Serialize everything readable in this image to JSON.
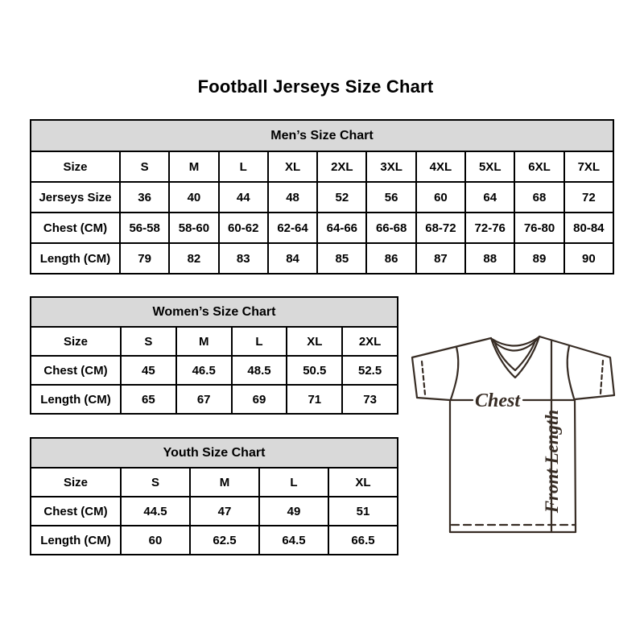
{
  "page": {
    "title": "Football Jerseys Size Chart"
  },
  "tables": [
    {
      "title": "Men’s Size Chart",
      "rows": [
        [
          "Size",
          "S",
          "M",
          "L",
          "XL",
          "2XL",
          "3XL",
          "4XL",
          "5XL",
          "6XL",
          "7XL"
        ],
        [
          "Jerseys Size",
          "36",
          "40",
          "44",
          "48",
          "52",
          "56",
          "60",
          "64",
          "68",
          "72"
        ],
        [
          "Chest (CM)",
          "56-58",
          "58-60",
          "60-62",
          "62-64",
          "64-66",
          "66-68",
          "68-72",
          "72-76",
          "76-80",
          "80-84"
        ],
        [
          "Length (CM)",
          "79",
          "82",
          "83",
          "84",
          "85",
          "86",
          "87",
          "88",
          "89",
          "90"
        ]
      ]
    },
    {
      "title": "Women’s Size Chart",
      "rows": [
        [
          "Size",
          "S",
          "M",
          "L",
          "XL",
          "2XL"
        ],
        [
          "Chest (CM)",
          "45",
          "46.5",
          "48.5",
          "50.5",
          "52.5"
        ],
        [
          "Length (CM)",
          "65",
          "67",
          "69",
          "71",
          "73"
        ]
      ]
    },
    {
      "title": "Youth Size Chart",
      "rows": [
        [
          "Size",
          "S",
          "M",
          "L",
          "XL"
        ],
        [
          "Chest (CM)",
          "44.5",
          "47",
          "49",
          "51"
        ],
        [
          "Length (CM)",
          "60",
          "62.5",
          "64.5",
          "66.5"
        ]
      ]
    }
  ],
  "diagram": {
    "chest_label": "Chest",
    "front_length_label": "Front Length"
  },
  "colors": {
    "background": "#ffffff",
    "text": "#000000",
    "table_border": "#000000",
    "header_fill": "#d9d9d9",
    "jersey_line": "#372c24"
  }
}
